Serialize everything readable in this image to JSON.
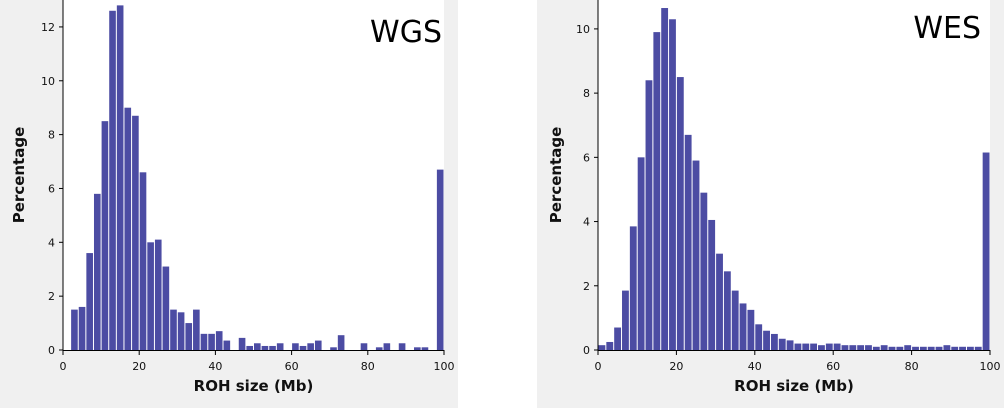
{
  "colors": {
    "bar": "#4c4ca3",
    "axis": "#000000",
    "plot_bg": "#ffffff",
    "panel_bg": "#f0f0f0"
  },
  "chart_data": [
    {
      "type": "bar",
      "panel_label": "WGS",
      "xlabel": "ROH size (Mb)",
      "ylabel": "Percentage",
      "xlim": [
        0,
        100
      ],
      "ylim": [
        0,
        13
      ],
      "xticks": [
        "0",
        "20",
        "40",
        "60",
        "80",
        "100"
      ],
      "yticks": [
        "0",
        "2",
        "4",
        "6",
        "8",
        "10",
        "12"
      ],
      "bin_width": 2,
      "x": [
        3,
        5,
        7,
        9,
        11,
        13,
        15,
        17,
        19,
        21,
        23,
        25,
        27,
        29,
        31,
        33,
        35,
        37,
        39,
        41,
        43,
        45,
        47,
        49,
        51,
        53,
        55,
        57,
        59,
        61,
        63,
        65,
        67,
        69,
        71,
        73,
        75,
        77,
        79,
        81,
        83,
        85,
        87,
        89,
        91,
        93,
        95,
        97,
        99
      ],
      "values": [
        1.5,
        1.6,
        3.6,
        5.8,
        8.5,
        12.6,
        12.8,
        9.0,
        8.7,
        6.6,
        4.0,
        4.1,
        3.1,
        1.5,
        1.4,
        1.0,
        1.5,
        0.6,
        0.6,
        0.7,
        0.35,
        0,
        0.45,
        0.15,
        0.25,
        0.15,
        0.15,
        0.25,
        0,
        0.25,
        0.15,
        0.25,
        0.35,
        0,
        0.1,
        0.55,
        0,
        0,
        0.25,
        0,
        0.1,
        0.25,
        0,
        0.25,
        0,
        0.1,
        0.1,
        0,
        6.7
      ],
      "grid": false
    },
    {
      "type": "bar",
      "panel_label": "WES",
      "xlabel": "ROH size (Mb)",
      "ylabel": "Percentage",
      "xlim": [
        0,
        100
      ],
      "ylim": [
        0,
        10.9
      ],
      "xticks": [
        "0",
        "20",
        "40",
        "60",
        "80",
        "100"
      ],
      "yticks": [
        "0",
        "2",
        "4",
        "6",
        "8",
        "10"
      ],
      "bin_width": 2,
      "x": [
        1,
        3,
        5,
        7,
        9,
        11,
        13,
        15,
        17,
        19,
        21,
        23,
        25,
        27,
        29,
        31,
        33,
        35,
        37,
        39,
        41,
        43,
        45,
        47,
        49,
        51,
        53,
        55,
        57,
        59,
        61,
        63,
        65,
        67,
        69,
        71,
        73,
        75,
        77,
        79,
        81,
        83,
        85,
        87,
        89,
        91,
        93,
        95,
        97,
        99
      ],
      "values": [
        0.15,
        0.25,
        0.7,
        1.85,
        3.85,
        6.0,
        8.4,
        9.9,
        10.65,
        10.3,
        8.5,
        6.7,
        5.9,
        4.9,
        4.05,
        3.0,
        2.45,
        1.85,
        1.45,
        1.25,
        0.8,
        0.6,
        0.5,
        0.35,
        0.3,
        0.2,
        0.2,
        0.2,
        0.15,
        0.2,
        0.2,
        0.15,
        0.15,
        0.15,
        0.15,
        0.1,
        0.15,
        0.1,
        0.1,
        0.15,
        0.1,
        0.1,
        0.1,
        0.1,
        0.15,
        0.1,
        0.1,
        0.1,
        0.1,
        6.15
      ],
      "grid": false
    }
  ]
}
